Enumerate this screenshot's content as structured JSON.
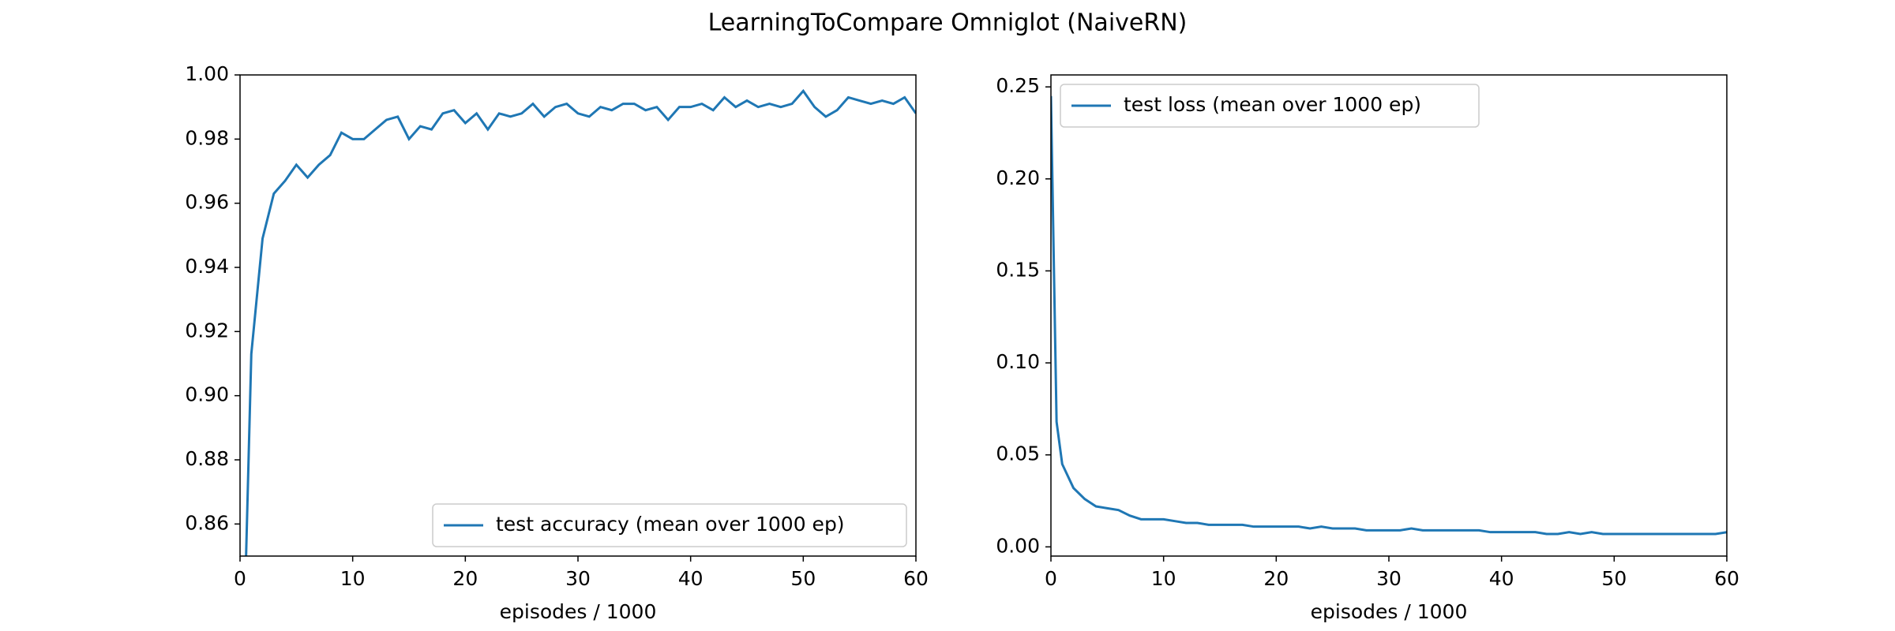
{
  "title": "LearningToCompare Omniglot (NaiveRN)",
  "chart_data": [
    {
      "type": "line",
      "xlabel": "episodes / 1000",
      "xlim": [
        0,
        60
      ],
      "xticks": [
        0,
        10,
        20,
        30,
        40,
        50,
        60
      ],
      "ylim": [
        0.85,
        1.0
      ],
      "yticks": [
        0.86,
        0.88,
        {
          "value": 0.9,
          "label": "0.90"
        },
        0.92,
        0.94,
        0.96,
        0.98,
        {
          "value": 1.0,
          "label": "1.00"
        }
      ],
      "legend": "lower right",
      "x": [
        0.5,
        1,
        2,
        3,
        4,
        5,
        6,
        7,
        8,
        9,
        10,
        11,
        12,
        13,
        14,
        15,
        16,
        17,
        18,
        19,
        20,
        21,
        22,
        23,
        24,
        25,
        26,
        27,
        28,
        29,
        30,
        31,
        32,
        33,
        34,
        35,
        36,
        37,
        38,
        39,
        40,
        41,
        42,
        43,
        44,
        45,
        46,
        47,
        48,
        49,
        50,
        51,
        52,
        53,
        54,
        55,
        56,
        57,
        58,
        59,
        60
      ],
      "series": [
        {
          "name": "test accuracy (mean over 1000 ep)",
          "color": "#1f77b4",
          "values": [
            0.845,
            0.913,
            0.949,
            0.963,
            0.967,
            0.972,
            0.968,
            0.972,
            0.975,
            0.982,
            0.98,
            0.98,
            0.983,
            0.986,
            0.987,
            0.98,
            0.984,
            0.983,
            0.988,
            0.989,
            0.985,
            0.988,
            0.983,
            0.988,
            0.987,
            0.988,
            0.991,
            0.987,
            0.99,
            0.991,
            0.988,
            0.987,
            0.99,
            0.989,
            0.991,
            0.991,
            0.989,
            0.99,
            0.986,
            0.99,
            0.99,
            0.991,
            0.989,
            0.993,
            0.99,
            0.992,
            0.99,
            0.991,
            0.99,
            0.991,
            0.995,
            0.99,
            0.987,
            0.989,
            0.993,
            0.992,
            0.991,
            0.992,
            0.991,
            0.993,
            0.988
          ]
        }
      ]
    },
    {
      "type": "line",
      "xlabel": "episodes / 1000",
      "xlim": [
        0,
        60
      ],
      "xticks": [
        0,
        10,
        20,
        30,
        40,
        50,
        60
      ],
      "ylim": [
        -0.005,
        0.2565
      ],
      "yticks": [
        {
          "value": 0,
          "label": "0.00"
        },
        0.05,
        {
          "value": 0.1,
          "label": "0.10"
        },
        0.15,
        {
          "value": 0.2,
          "label": "0.20"
        },
        0.25
      ],
      "legend": "upper left",
      "x": [
        0,
        0.5,
        1,
        2,
        3,
        4,
        5,
        6,
        7,
        8,
        9,
        10,
        11,
        12,
        13,
        14,
        15,
        16,
        17,
        18,
        19,
        20,
        21,
        22,
        23,
        24,
        25,
        26,
        27,
        28,
        29,
        30,
        31,
        32,
        33,
        34,
        35,
        36,
        37,
        38,
        39,
        40,
        41,
        42,
        43,
        44,
        45,
        46,
        47,
        48,
        49,
        50,
        51,
        52,
        53,
        54,
        55,
        56,
        57,
        58,
        59,
        60
      ],
      "series": [
        {
          "name": "test loss (mean over 1000 ep)",
          "color": "#1f77b4",
          "values": [
            0.245,
            0.068,
            0.045,
            0.032,
            0.026,
            0.022,
            0.021,
            0.02,
            0.017,
            0.015,
            0.015,
            0.015,
            0.014,
            0.013,
            0.013,
            0.012,
            0.012,
            0.012,
            0.012,
            0.011,
            0.011,
            0.011,
            0.011,
            0.011,
            0.01,
            0.011,
            0.01,
            0.01,
            0.01,
            0.009,
            0.009,
            0.009,
            0.009,
            0.01,
            0.009,
            0.009,
            0.009,
            0.009,
            0.009,
            0.009,
            0.008,
            0.008,
            0.008,
            0.008,
            0.008,
            0.007,
            0.007,
            0.008,
            0.007,
            0.008,
            0.007,
            0.007,
            0.007,
            0.007,
            0.007,
            0.007,
            0.007,
            0.007,
            0.007,
            0.007,
            0.007,
            0.008
          ]
        }
      ]
    }
  ]
}
